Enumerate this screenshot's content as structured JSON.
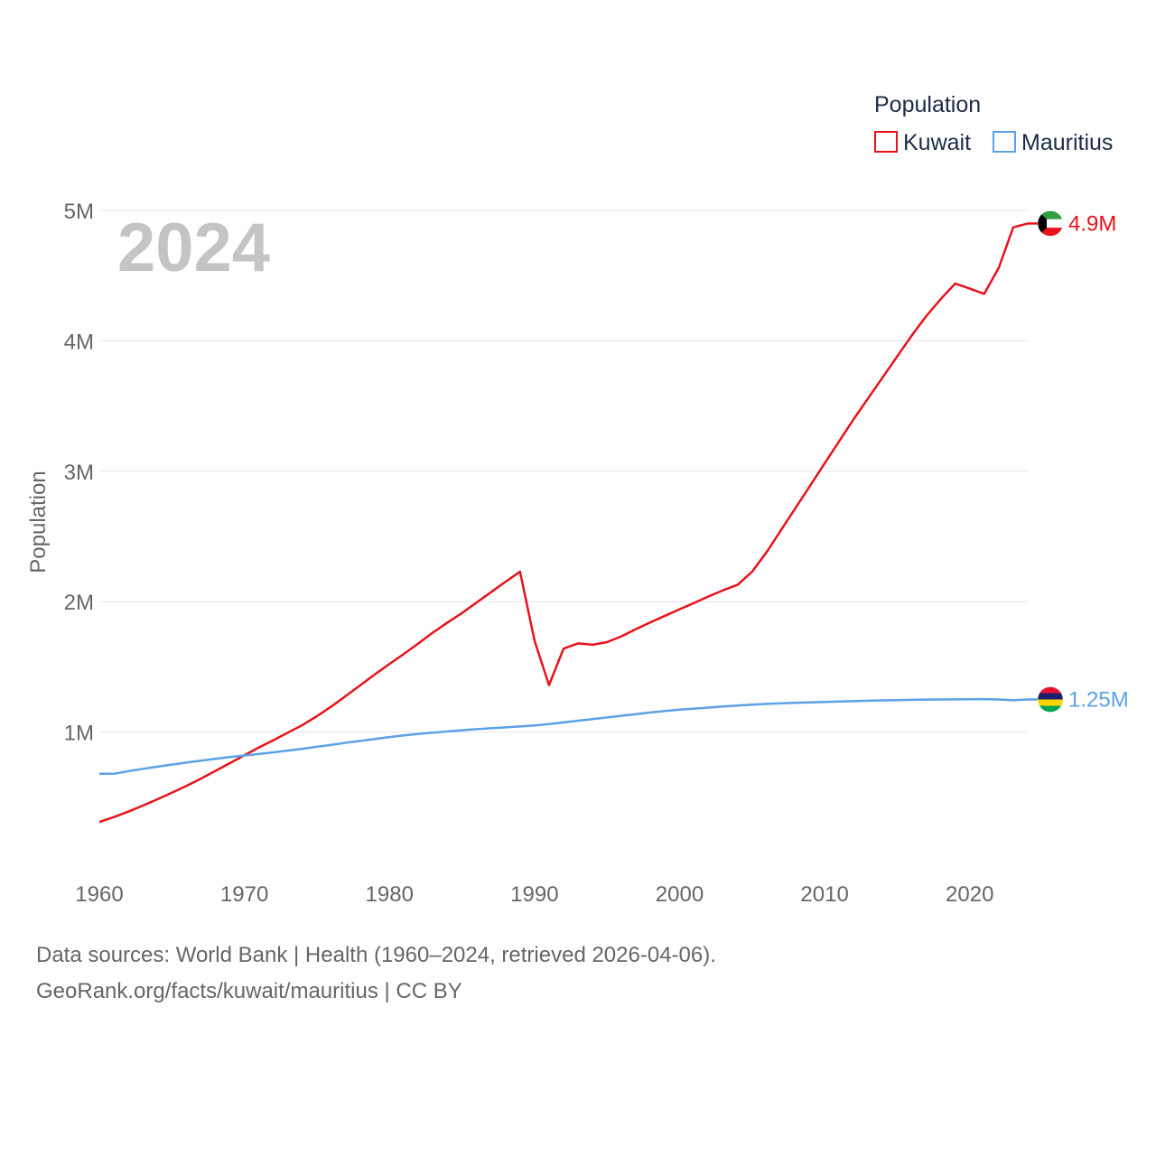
{
  "chart_data": {
    "type": "line",
    "year_label": "2024",
    "ylabel": "Population",
    "xlabel": "",
    "ylim": [
      0,
      5000000
    ],
    "xlim": [
      1960,
      2024
    ],
    "grid": true,
    "y_ticks": [
      {
        "value": 1000000,
        "label": "1M"
      },
      {
        "value": 2000000,
        "label": "2M"
      },
      {
        "value": 3000000,
        "label": "3M"
      },
      {
        "value": 4000000,
        "label": "4M"
      },
      {
        "value": 5000000,
        "label": "5M"
      }
    ],
    "x_ticks": [
      {
        "value": 1960,
        "label": "1960"
      },
      {
        "value": 1970,
        "label": "1970"
      },
      {
        "value": 1980,
        "label": "1980"
      },
      {
        "value": 1990,
        "label": "1990"
      },
      {
        "value": 2000,
        "label": "2000"
      },
      {
        "value": 2010,
        "label": "2010"
      },
      {
        "value": 2020,
        "label": "2020"
      }
    ],
    "legend": {
      "title": "Population",
      "placement": "top-right",
      "entries": [
        "Kuwait",
        "Mauritius"
      ]
    },
    "series": [
      {
        "name": "Kuwait",
        "color": "#e8121b",
        "end_label": "4.9M",
        "flag_icon": "kuwait-flag-icon",
        "x": [
          1960,
          1961,
          1962,
          1963,
          1964,
          1965,
          1966,
          1967,
          1968,
          1969,
          1970,
          1971,
          1972,
          1973,
          1974,
          1975,
          1976,
          1977,
          1978,
          1979,
          1980,
          1981,
          1982,
          1983,
          1984,
          1985,
          1986,
          1987,
          1988,
          1989,
          1990,
          1991,
          1992,
          1993,
          1994,
          1995,
          1996,
          1997,
          1998,
          1999,
          2000,
          2001,
          2002,
          2003,
          2004,
          2005,
          2006,
          2007,
          2008,
          2009,
          2010,
          2011,
          2012,
          2013,
          2014,
          2015,
          2016,
          2017,
          2018,
          2019,
          2020,
          2021,
          2022,
          2023,
          2024
        ],
        "values": [
          310000,
          348000,
          390000,
          436000,
          485000,
          535000,
          587000,
          643000,
          702000,
          762000,
          822000,
          882000,
          938000,
          996000,
          1054000,
          1122000,
          1197000,
          1278000,
          1360000,
          1443000,
          1523000,
          1600000,
          1680000,
          1763000,
          1840000,
          1913000,
          1993000,
          2073000,
          2153000,
          2230000,
          1700000,
          1360000,
          1640000,
          1680000,
          1670000,
          1690000,
          1735000,
          1790000,
          1842000,
          1892000,
          1942000,
          1990000,
          2040000,
          2087000,
          2130000,
          2230000,
          2380000,
          2550000,
          2720000,
          2890000,
          3060000,
          3230000,
          3400000,
          3560000,
          3720000,
          3880000,
          4040000,
          4190000,
          4320000,
          4440000,
          4400000,
          4360000,
          4560000,
          4870000,
          4900000
        ]
      },
      {
        "name": "Mauritius",
        "color": "#5ba2e6",
        "end_label": "1.25M",
        "flag_icon": "mauritius-flag-icon",
        "x": [
          1960,
          1961,
          1962,
          1963,
          1964,
          1965,
          1966,
          1967,
          1968,
          1969,
          1970,
          1971,
          1972,
          1973,
          1974,
          1975,
          1976,
          1977,
          1978,
          1979,
          1980,
          1981,
          1982,
          1983,
          1984,
          1985,
          1986,
          1987,
          1988,
          1989,
          1990,
          1991,
          1992,
          1993,
          1994,
          1995,
          1996,
          1997,
          1998,
          1999,
          2000,
          2001,
          2002,
          2003,
          2004,
          2005,
          2006,
          2007,
          2008,
          2009,
          2010,
          2011,
          2012,
          2013,
          2014,
          2015,
          2016,
          2017,
          2018,
          2019,
          2020,
          2021,
          2022,
          2023,
          2024
        ],
        "values": [
          680000,
          680000,
          700000,
          718000,
          735000,
          751000,
          766000,
          781000,
          795000,
          808000,
          820000,
          832000,
          845000,
          858000,
          872000,
          887000,
          902000,
          918000,
          932000,
          947000,
          962000,
          975000,
          986000,
          996000,
          1005000,
          1014000,
          1022000,
          1029000,
          1036000,
          1043000,
          1051000,
          1061000,
          1074000,
          1087000,
          1100000,
          1112000,
          1125000,
          1137000,
          1150000,
          1162000,
          1172000,
          1180000,
          1188000,
          1196000,
          1203000,
          1210000,
          1216000,
          1221000,
          1225000,
          1228000,
          1231000,
          1234000,
          1237000,
          1240000,
          1243000,
          1245000,
          1247000,
          1249000,
          1250000,
          1251000,
          1252000,
          1253000,
          1250000,
          1244000,
          1250000
        ]
      }
    ],
    "source_line1": "Data sources: World Bank | Health (1960–2024, retrieved 2026-04-06).",
    "source_line2": "GeoRank.org/facts/kuwait/mauritius | CC BY"
  }
}
